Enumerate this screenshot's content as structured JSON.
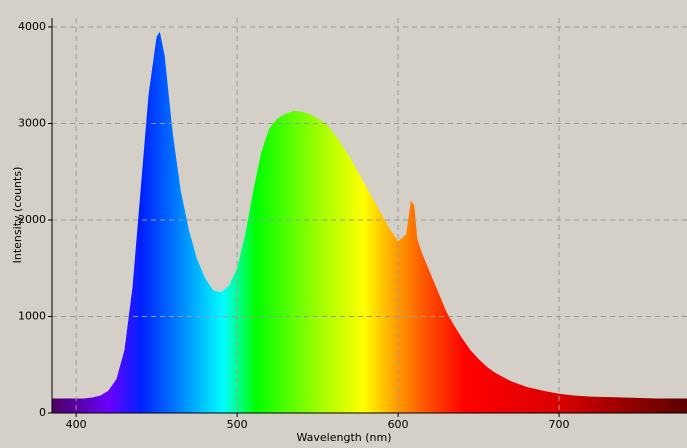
{
  "chart_data": {
    "type": "area",
    "xlabel": "Wavelength (nm)",
    "ylabel": "Intensity (counts)",
    "x": [
      385,
      390,
      395,
      400,
      405,
      410,
      415,
      420,
      425,
      430,
      435,
      440,
      445,
      450,
      452,
      455,
      460,
      465,
      470,
      475,
      480,
      485,
      490,
      495,
      500,
      505,
      510,
      515,
      520,
      525,
      530,
      535,
      540,
      545,
      550,
      555,
      560,
      565,
      570,
      575,
      580,
      585,
      590,
      595,
      600,
      605,
      608,
      610,
      612,
      615,
      620,
      625,
      630,
      635,
      640,
      645,
      650,
      655,
      660,
      670,
      680,
      690,
      700,
      710,
      720,
      740,
      760,
      780
    ],
    "series": [
      {
        "values": [
          150,
          150,
          150,
          150,
          150,
          160,
          180,
          230,
          350,
          650,
          1300,
          2300,
          3300,
          3900,
          3950,
          3700,
          2900,
          2300,
          1900,
          1600,
          1400,
          1270,
          1250,
          1320,
          1500,
          1850,
          2300,
          2700,
          2950,
          3050,
          3100,
          3130,
          3120,
          3100,
          3050,
          3000,
          2900,
          2780,
          2650,
          2500,
          2350,
          2200,
          2050,
          1900,
          1780,
          1850,
          2200,
          2150,
          1800,
          1650,
          1450,
          1250,
          1050,
          900,
          770,
          650,
          560,
          480,
          420,
          330,
          270,
          230,
          200,
          180,
          170,
          160,
          150,
          150
        ]
      }
    ],
    "xlim": [
      385,
      779.5
    ],
    "ylim": [
      0,
      4093
    ],
    "xticks": [
      400,
      500,
      600,
      700
    ],
    "yticks": [
      0,
      1000,
      2000,
      3000,
      4000
    ],
    "grid": true
  }
}
